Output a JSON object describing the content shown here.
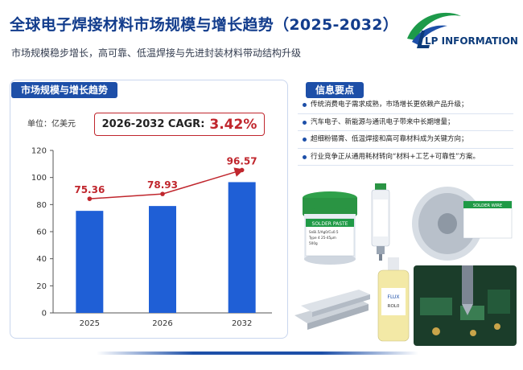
{
  "header": {
    "title": "全球电子焊接材料市场规模与增长趋势（2025-2032）",
    "subtitle": "市场规模稳步增长，高可靠、低温焊接与先进封装材料带动结构升级",
    "logo_text": "LP INFORMATION"
  },
  "chart_panel": {
    "tab_label": "市场规模与增长趋势",
    "unit_label": "单位：亿美元",
    "cagr_label": "2026-2032 CAGR:",
    "cagr_value": "3.42%"
  },
  "chart_data": {
    "type": "bar",
    "title": "",
    "xlabel": "",
    "ylabel": "",
    "categories": [
      "2025",
      "2026",
      "2032"
    ],
    "values": [
      75.36,
      78.93,
      96.57
    ],
    "value_labels": [
      "75.36",
      "78.93",
      "96.57"
    ],
    "ylim": [
      0,
      120
    ],
    "yticks": [
      "0",
      "20",
      "40",
      "60",
      "80",
      "100",
      "120"
    ],
    "ytick_values": [
      0,
      20,
      40,
      60,
      80,
      100,
      120
    ],
    "grid": false,
    "bar_color": "#1f5fd6",
    "trend_color": "#c0262d"
  },
  "info_panel": {
    "tab_label": "信息要点",
    "items": [
      "传统消费电子需求成熟，市场增长更依赖产品升级；",
      "汽车电子、新能源与通讯电子带来中长期增量；",
      "超细粉锡膏、低温焊接和高可靠材料成为关键方向；",
      "行业竞争正从通用耗材转向“材料+工艺+可靠性”方案。"
    ]
  },
  "products": {
    "paste_label": "SOLDER PASTE",
    "paste_spec_1": "SnBi.5/Ag0/Cu0.5",
    "paste_spec_2": "Type 4    25-45μm",
    "paste_spec_3": "500g",
    "wire_label": "SOLDER WIRE",
    "flux_label": "FLUX",
    "flux_sub": "ROL0"
  }
}
